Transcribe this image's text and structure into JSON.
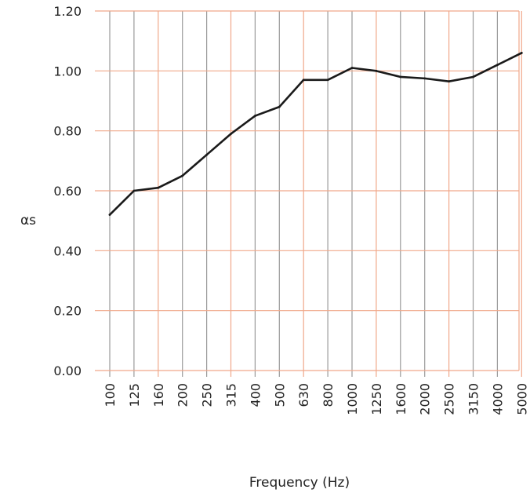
{
  "chart_data": {
    "type": "line",
    "title": "",
    "xlabel": "Frequency (Hz)",
    "ylabel": "αs",
    "x": [
      "100",
      "125",
      "160",
      "200",
      "250",
      "315",
      "400",
      "500",
      "630",
      "800",
      "1000",
      "1250",
      "1600",
      "2000",
      "2500",
      "3150",
      "4000",
      "5000"
    ],
    "series": [
      {
        "values": [
          0.52,
          0.6,
          0.61,
          0.65,
          0.72,
          0.79,
          0.85,
          0.88,
          0.97,
          0.97,
          1.01,
          1.0,
          0.98,
          0.975,
          0.965,
          0.98,
          1.02,
          1.06
        ]
      }
    ],
    "ylim": [
      0,
      1.2
    ],
    "yticks": [
      "0.00",
      "0.20",
      "0.40",
      "0.60",
      "0.80",
      "1.00",
      "1.20"
    ],
    "grid": true,
    "colors": {
      "line": "#1a1a1a",
      "major_grid": "#f0a88a",
      "minor_grid": "#9a9a9a"
    }
  }
}
